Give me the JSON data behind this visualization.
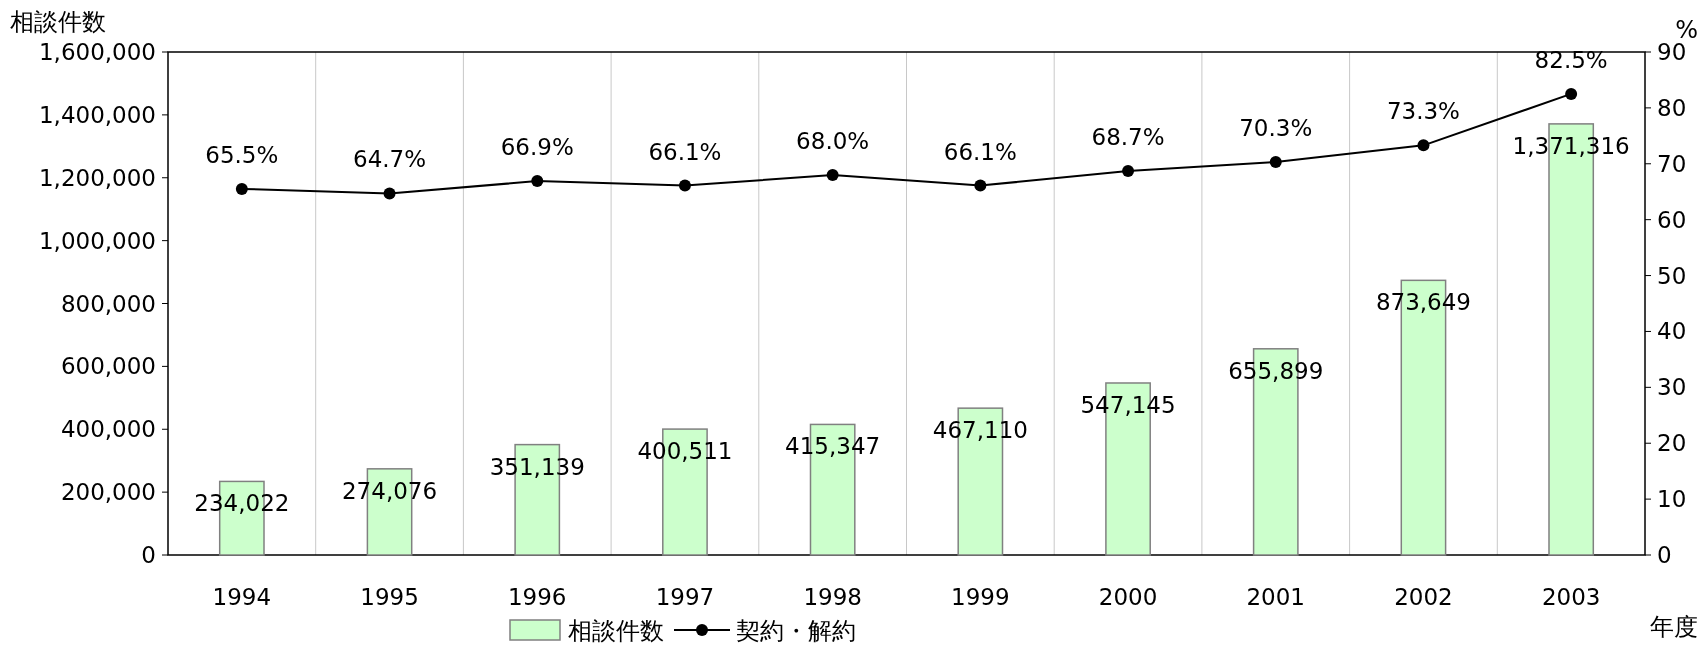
{
  "chart_data": {
    "type": "bar",
    "ylabel": "相談件数",
    "y2label": "%",
    "xlabel": "年度",
    "categories": [
      "1994",
      "1995",
      "1996",
      "1997",
      "1998",
      "1999",
      "2000",
      "2001",
      "2002",
      "2003"
    ],
    "series": [
      {
        "name": "相談件数",
        "color": "#ccffcc",
        "values": [
          234022,
          274076,
          351139,
          400511,
          415347,
          467110,
          547145,
          655899,
          873649,
          1371316
        ],
        "value_labels": [
          "234,022",
          "274,076",
          "351,139",
          "400,511",
          "415,347",
          "467,110",
          "547,145",
          "655,899",
          "873,649",
          "1,371,316"
        ]
      },
      {
        "name": "契約・解約",
        "type": "line",
        "axis": "y2",
        "color": "#000000",
        "marker": "circle",
        "values": [
          65.5,
          64.7,
          66.9,
          66.1,
          68.0,
          66.1,
          68.7,
          70.3,
          73.3,
          82.5
        ],
        "value_labels": [
          "65.5%",
          "64.7%",
          "66.9%",
          "66.1%",
          "68.0%",
          "66.1%",
          "68.7%",
          "70.3%",
          "73.3%",
          "82.5%"
        ]
      }
    ],
    "ylim": [
      0,
      1600000
    ],
    "yticks": [
      0,
      {
        "value": 200000,
        "label": "200,000"
      },
      {
        "value": 400000,
        "label": "400,000"
      },
      {
        "value": 600000,
        "label": "600,000"
      },
      {
        "value": 800000,
        "label": "800,000"
      },
      {
        "value": 1000000,
        "label": "1,000,000"
      },
      {
        "value": 1200000,
        "label": "1,200,000"
      },
      {
        "value": 1400000,
        "label": "1,400,000"
      },
      {
        "value": 1600000,
        "label": "1,600,000"
      }
    ],
    "y2lim": [
      0,
      90
    ],
    "y2ticks": [
      0,
      10,
      20,
      30,
      40,
      50,
      60,
      70,
      80,
      90
    ],
    "grid": "x",
    "legend": "bottom"
  }
}
